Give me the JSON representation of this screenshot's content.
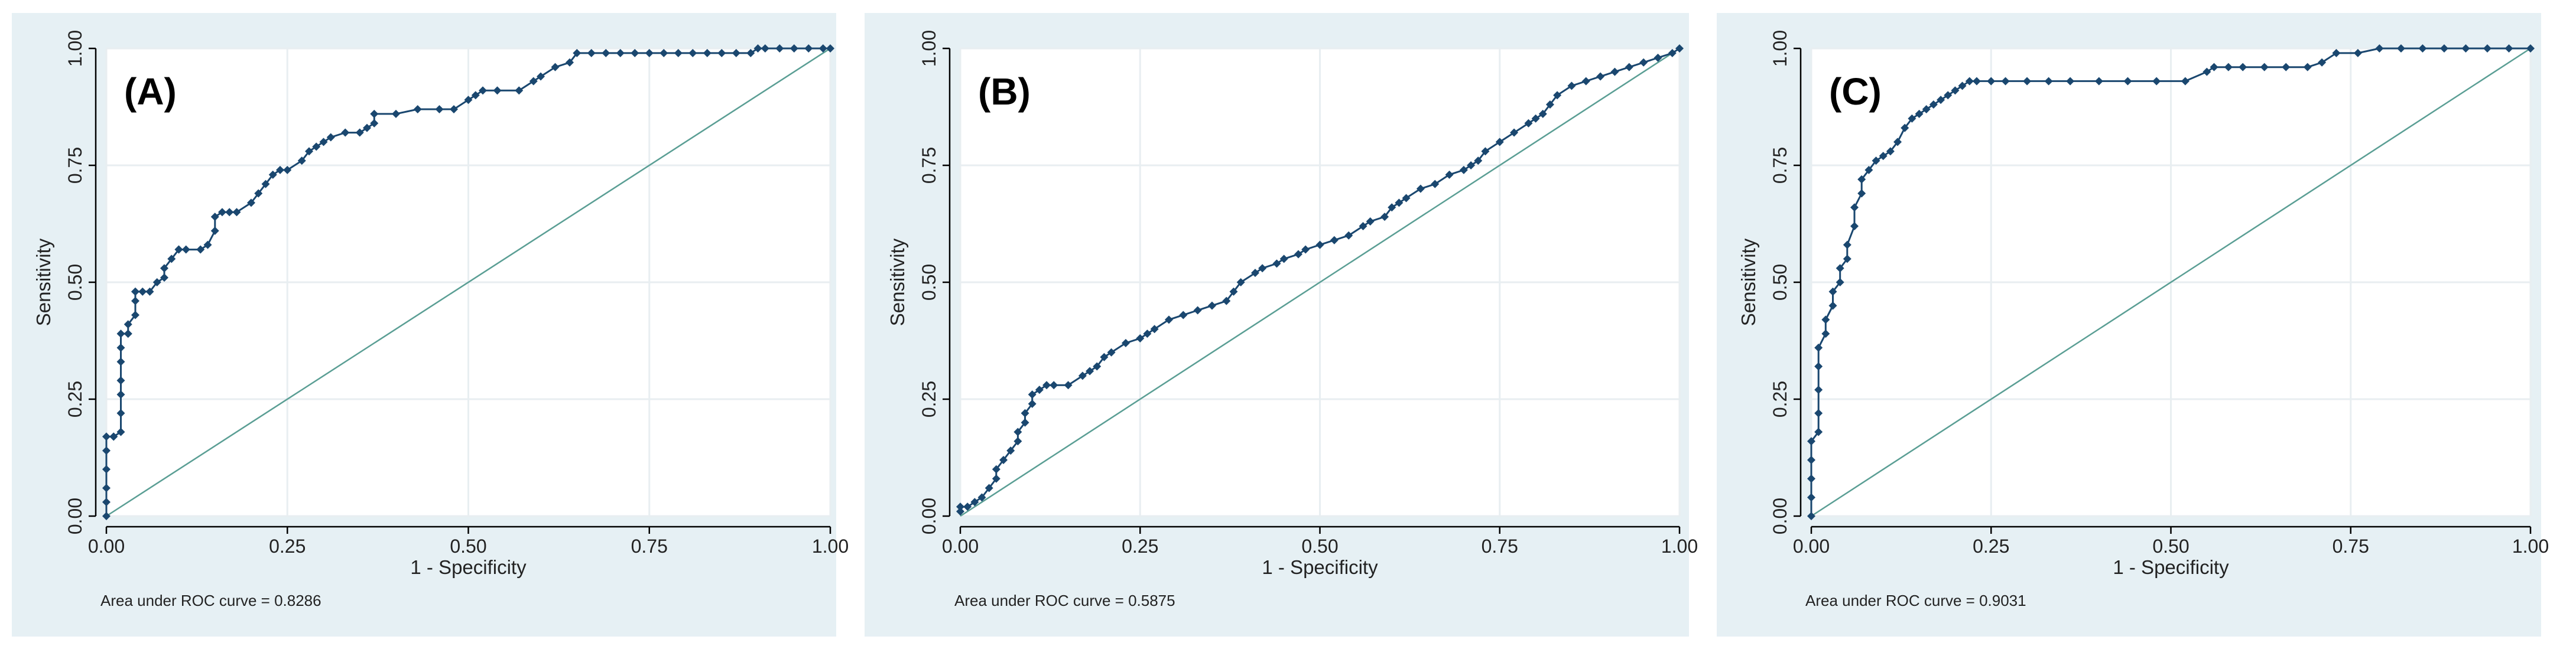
{
  "figure": {
    "background": "#e6f0f4",
    "plot_background": "#ffffff",
    "grid_color": "#e8eef1",
    "curve_color": "#1a476f",
    "reference_color": "#5a9e94"
  },
  "chart_data": [
    {
      "type": "line",
      "panel_label": "(A)",
      "xlabel": "1 - Specificity",
      "ylabel": "Sensitivity",
      "xlim": [
        0,
        1
      ],
      "ylim": [
        0,
        1
      ],
      "xticks": [
        "0.00",
        "0.25",
        "0.50",
        "0.75",
        "1.00"
      ],
      "yticks": [
        "0.00",
        "0.25",
        "0.50",
        "0.75",
        "1.00"
      ],
      "grid": true,
      "auc_text": "Area under ROC curve = 0.8286",
      "reference_line": [
        [
          0,
          0
        ],
        [
          1,
          1
        ]
      ],
      "series": [
        {
          "x": [
            0,
            0,
            0,
            0,
            0,
            0,
            0.01,
            0.01,
            0.02,
            0.02,
            0.02,
            0.02,
            0.02,
            0.02,
            0.02,
            0.03,
            0.03,
            0.03,
            0.04,
            0.04,
            0.04,
            0.04,
            0.05,
            0.06,
            0.07,
            0.08,
            0.08,
            0.09,
            0.1,
            0.1,
            0.11,
            0.13,
            0.14,
            0.15,
            0.15,
            0.16,
            0.17,
            0.18,
            0.2,
            0.21,
            0.22,
            0.23,
            0.24,
            0.25,
            0.27,
            0.28,
            0.29,
            0.3,
            0.31,
            0.33,
            0.35,
            0.36,
            0.37,
            0.37,
            0.4,
            0.43,
            0.46,
            0.48,
            0.5,
            0.51,
            0.52,
            0.54,
            0.57,
            0.59,
            0.6,
            0.62,
            0.64,
            0.65,
            0.67,
            0.69,
            0.71,
            0.73,
            0.75,
            0.77,
            0.79,
            0.81,
            0.83,
            0.85,
            0.87,
            0.89,
            0.9,
            0.91,
            0.93,
            0.95,
            0.97,
            0.99,
            1.0
          ],
          "y": [
            0,
            0.03,
            0.06,
            0.1,
            0.14,
            0.17,
            0.17,
            0.17,
            0.18,
            0.22,
            0.26,
            0.29,
            0.33,
            0.36,
            0.39,
            0.39,
            0.39,
            0.41,
            0.43,
            0.46,
            0.48,
            0.48,
            0.48,
            0.48,
            0.5,
            0.51,
            0.53,
            0.55,
            0.57,
            0.57,
            0.57,
            0.57,
            0.58,
            0.61,
            0.64,
            0.65,
            0.65,
            0.65,
            0.67,
            0.69,
            0.71,
            0.73,
            0.74,
            0.74,
            0.76,
            0.78,
            0.79,
            0.8,
            0.81,
            0.82,
            0.82,
            0.83,
            0.84,
            0.86,
            0.86,
            0.87,
            0.87,
            0.87,
            0.89,
            0.9,
            0.91,
            0.91,
            0.91,
            0.93,
            0.94,
            0.96,
            0.97,
            0.99,
            0.99,
            0.99,
            0.99,
            0.99,
            0.99,
            0.99,
            0.99,
            0.99,
            0.99,
            0.99,
            0.99,
            0.99,
            1.0,
            1.0,
            1.0,
            1.0,
            1.0,
            1.0,
            1.0
          ]
        }
      ]
    },
    {
      "type": "line",
      "panel_label": "(B)",
      "xlabel": "1 - Specificity",
      "ylabel": "Sensitivity",
      "xlim": [
        0,
        1
      ],
      "ylim": [
        0,
        1
      ],
      "xticks": [
        "0.00",
        "0.25",
        "0.50",
        "0.75",
        "1.00"
      ],
      "yticks": [
        "0.00",
        "0.25",
        "0.50",
        "0.75",
        "1.00"
      ],
      "grid": true,
      "auc_text": "Area under ROC curve = 0.5875",
      "reference_line": [
        [
          0,
          0
        ],
        [
          1,
          1
        ]
      ],
      "series": [
        {
          "x": [
            0,
            0,
            0.01,
            0.02,
            0.03,
            0.04,
            0.05,
            0.05,
            0.06,
            0.07,
            0.08,
            0.08,
            0.09,
            0.09,
            0.1,
            0.1,
            0.11,
            0.12,
            0.13,
            0.15,
            0.17,
            0.18,
            0.19,
            0.2,
            0.21,
            0.23,
            0.25,
            0.26,
            0.27,
            0.29,
            0.31,
            0.33,
            0.35,
            0.37,
            0.38,
            0.39,
            0.41,
            0.42,
            0.44,
            0.45,
            0.47,
            0.48,
            0.5,
            0.52,
            0.54,
            0.56,
            0.57,
            0.59,
            0.6,
            0.61,
            0.62,
            0.64,
            0.66,
            0.68,
            0.7,
            0.71,
            0.72,
            0.73,
            0.75,
            0.77,
            0.79,
            0.8,
            0.81,
            0.82,
            0.83,
            0.85,
            0.87,
            0.89,
            0.91,
            0.93,
            0.95,
            0.97,
            0.99,
            1.0
          ],
          "y": [
            0.01,
            0.02,
            0.02,
            0.03,
            0.04,
            0.06,
            0.08,
            0.1,
            0.12,
            0.14,
            0.16,
            0.18,
            0.2,
            0.22,
            0.24,
            0.26,
            0.27,
            0.28,
            0.28,
            0.28,
            0.3,
            0.31,
            0.32,
            0.34,
            0.35,
            0.37,
            0.38,
            0.39,
            0.4,
            0.42,
            0.43,
            0.44,
            0.45,
            0.46,
            0.48,
            0.5,
            0.52,
            0.53,
            0.54,
            0.55,
            0.56,
            0.57,
            0.58,
            0.59,
            0.6,
            0.62,
            0.63,
            0.64,
            0.66,
            0.67,
            0.68,
            0.7,
            0.71,
            0.73,
            0.74,
            0.75,
            0.76,
            0.78,
            0.8,
            0.82,
            0.84,
            0.85,
            0.86,
            0.88,
            0.9,
            0.92,
            0.93,
            0.94,
            0.95,
            0.96,
            0.97,
            0.98,
            0.99,
            1.0
          ]
        }
      ]
    },
    {
      "type": "line",
      "panel_label": "(C)",
      "xlabel": "1 - Specificity",
      "ylabel": "Sensitivity",
      "xlim": [
        0,
        1
      ],
      "ylim": [
        0,
        1
      ],
      "xticks": [
        "0.00",
        "0.25",
        "0.50",
        "0.75",
        "1.00"
      ],
      "yticks": [
        "0.00",
        "0.25",
        "0.50",
        "0.75",
        "1.00"
      ],
      "grid": true,
      "auc_text": "Area under ROC curve = 0.9031",
      "reference_line": [
        [
          0,
          0
        ],
        [
          1,
          1
        ]
      ],
      "series": [
        {
          "x": [
            0,
            0,
            0,
            0,
            0,
            0.01,
            0.01,
            0.01,
            0.01,
            0.01,
            0.02,
            0.02,
            0.03,
            0.03,
            0.04,
            0.04,
            0.05,
            0.05,
            0.06,
            0.06,
            0.07,
            0.07,
            0.08,
            0.09,
            0.1,
            0.11,
            0.12,
            0.13,
            0.14,
            0.15,
            0.16,
            0.17,
            0.18,
            0.19,
            0.2,
            0.21,
            0.22,
            0.23,
            0.25,
            0.27,
            0.3,
            0.33,
            0.36,
            0.4,
            0.44,
            0.48,
            0.52,
            0.55,
            0.56,
            0.58,
            0.6,
            0.63,
            0.66,
            0.69,
            0.71,
            0.73,
            0.76,
            0.79,
            0.82,
            0.85,
            0.88,
            0.91,
            0.94,
            0.97,
            1.0
          ],
          "y": [
            0,
            0.04,
            0.08,
            0.12,
            0.16,
            0.18,
            0.22,
            0.27,
            0.32,
            0.36,
            0.39,
            0.42,
            0.45,
            0.48,
            0.5,
            0.53,
            0.55,
            0.58,
            0.62,
            0.66,
            0.69,
            0.72,
            0.74,
            0.76,
            0.77,
            0.78,
            0.8,
            0.83,
            0.85,
            0.86,
            0.87,
            0.88,
            0.89,
            0.9,
            0.91,
            0.92,
            0.93,
            0.93,
            0.93,
            0.93,
            0.93,
            0.93,
            0.93,
            0.93,
            0.93,
            0.93,
            0.93,
            0.95,
            0.96,
            0.96,
            0.96,
            0.96,
            0.96,
            0.96,
            0.97,
            0.99,
            0.99,
            1.0,
            1.0,
            1.0,
            1.0,
            1.0,
            1.0,
            1.0,
            1.0
          ]
        }
      ]
    }
  ]
}
